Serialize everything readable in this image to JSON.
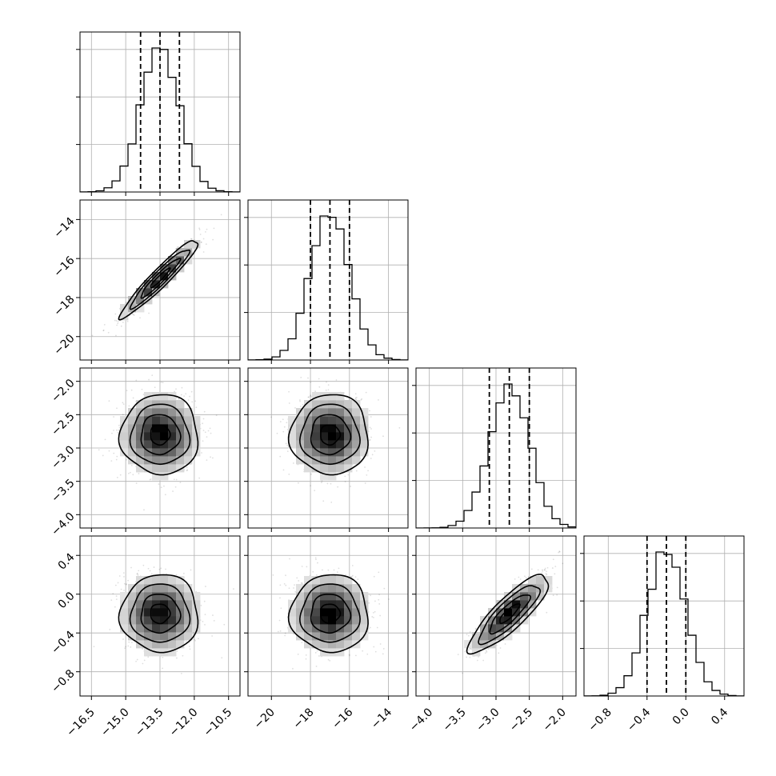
{
  "chart_data": {
    "type": "corner",
    "variables": [
      {
        "range": [
          -17.0,
          -10.0
        ],
        "ticks": [
          -16.5,
          -15.0,
          -13.5,
          -12.0,
          -10.5
        ],
        "tick_labels": [
          "−16.5",
          "−15.0",
          "−13.5",
          "−12.0",
          "−10.5"
        ],
        "mean": -13.5,
        "std": 0.85,
        "quantiles": [
          -14.35,
          -13.5,
          -12.65
        ]
      },
      {
        "range": [
          -21.2,
          -13.0
        ],
        "ticks": [
          -20,
          -18,
          -16,
          -14
        ],
        "tick_labels": [
          "−20",
          "−18",
          "−16",
          "−14"
        ],
        "mean": -17.0,
        "std": 1.0,
        "quantiles": [
          -18.0,
          -17.0,
          -16.0
        ]
      },
      {
        "range": [
          -4.2,
          -1.8
        ],
        "ticks": [
          -4.0,
          -3.5,
          -3.0,
          -2.5,
          -2.0
        ],
        "tick_labels": [
          "−4.0",
          "−3.5",
          "−3.0",
          "−2.5",
          "−2.0"
        ],
        "mean": -2.8,
        "std": 0.3,
        "quantiles": [
          -3.1,
          -2.8,
          -2.5
        ]
      },
      {
        "range": [
          -1.05,
          0.6
        ],
        "ticks": [
          -0.8,
          -0.4,
          0.0,
          0.4
        ],
        "tick_labels": [
          "−0.8",
          "−0.4",
          "0.0",
          "0.4"
        ],
        "mean": -0.2,
        "std": 0.2,
        "quantiles": [
          -0.4,
          -0.2,
          0.0
        ]
      }
    ],
    "correlations": [
      [
        1.0,
        0.95,
        0.0,
        0.0
      ],
      [
        0.95,
        1.0,
        0.0,
        0.0
      ],
      [
        0.0,
        0.0,
        1.0,
        0.85
      ],
      [
        0.0,
        0.0,
        0.85,
        1.0
      ]
    ],
    "histogram_bins": 20,
    "contour_levels": [
      0.5,
      1.0,
      1.5,
      2.0
    ],
    "grid": true
  }
}
